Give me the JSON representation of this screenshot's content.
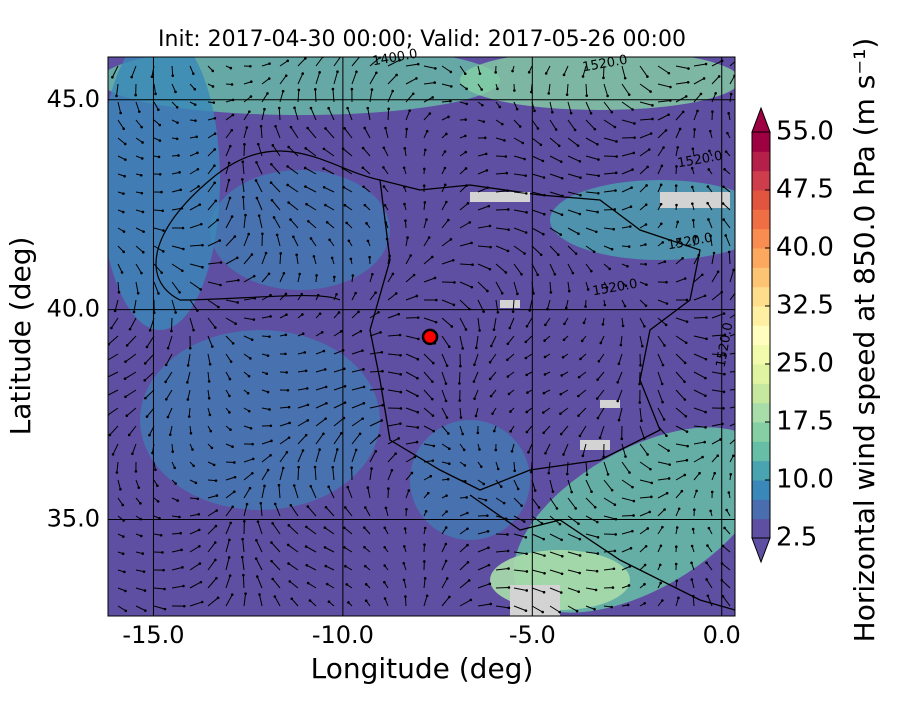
{
  "title": "Init: 2017-04-30 00:00; Valid: 2017-05-26 00:00",
  "xlabel": "Longitude (deg)",
  "ylabel": "Latitude (deg)",
  "xlim": [
    -16.2,
    0.35
  ],
  "ylim": [
    32.7,
    46.02
  ],
  "xticks": [
    {
      "value": -15,
      "label": "-15.0"
    },
    {
      "value": -10,
      "label": "-10.0"
    },
    {
      "value": -5,
      "label": "-5.0"
    },
    {
      "value": 0,
      "label": "0.0"
    }
  ],
  "yticks": [
    {
      "value": 35,
      "label": "35.0"
    },
    {
      "value": 40,
      "label": "40.0"
    },
    {
      "value": 45,
      "label": "45.0"
    }
  ],
  "marker": {
    "lon": -7.7,
    "lat": 39.35,
    "color": "#ff0000"
  },
  "contour_labels": [
    "1400.0",
    "1520.0",
    "1520.0",
    "1520.0",
    "1520.0",
    "1520.0"
  ],
  "colorbar": {
    "label": "Horizontal wind speed at 850.0 hPa (m s⁻¹)",
    "lim": [
      2.5,
      55
    ],
    "ticks": [
      {
        "value": 2.5,
        "label": "2.5"
      },
      {
        "value": 10,
        "label": "10.0"
      },
      {
        "value": 17.5,
        "label": "17.5"
      },
      {
        "value": 25,
        "label": "25.0"
      },
      {
        "value": 32.5,
        "label": "32.5"
      },
      {
        "value": 40,
        "label": "40.0"
      },
      {
        "value": 47.5,
        "label": "47.5"
      },
      {
        "value": 55,
        "label": "55.0"
      }
    ],
    "colors": [
      "#5e4fa2",
      "#4a6db0",
      "#3a88b9",
      "#4aa3b1",
      "#66bea6",
      "#86cfa5",
      "#a8ddaa",
      "#c6e89e",
      "#e0f3a0",
      "#f2faac",
      "#fffebe",
      "#feefa3",
      "#fedd8d",
      "#fdc474",
      "#fca85e",
      "#f88c51",
      "#f06e44",
      "#e1553f",
      "#cd3d4b",
      "#b5204b",
      "#9e0142"
    ]
  }
}
